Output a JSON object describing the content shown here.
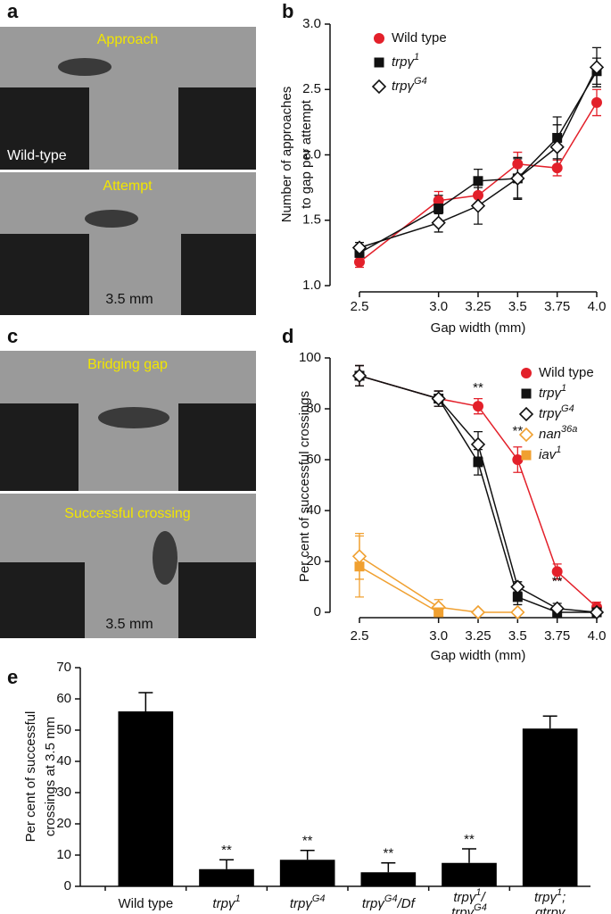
{
  "panel_letters": [
    "a",
    "b",
    "c",
    "d",
    "e"
  ],
  "photos": [
    {
      "label": "Approach",
      "corner_label": "Wild-type"
    },
    {
      "label": "Attempt",
      "corner_label": "3.5 mm"
    },
    {
      "label": "Bridging gap"
    },
    {
      "label": "Successful crossing",
      "corner_label": "3.5 mm"
    }
  ],
  "chart_data": [
    {
      "type": "line",
      "x_label": "Gap width (mm)",
      "y_label": [
        "Number of approaches",
        "to gap per attempt"
      ],
      "x": [
        2.5,
        3.0,
        3.25,
        3.5,
        3.75,
        4.0
      ],
      "xlim": [
        2.5,
        4.0
      ],
      "xticks": [
        2.5,
        {
          "value": 3,
          "label": "3.0"
        },
        3.25,
        3.5,
        3.75,
        {
          "value": 4,
          "label": "4.0"
        }
      ],
      "ylim": [
        1.0,
        3.0
      ],
      "yticks": [
        {
          "value": 1,
          "label": "1.0"
        },
        1.5,
        {
          "value": 2,
          "label": "2.0"
        },
        2.5,
        {
          "value": 3,
          "label": "3.0"
        }
      ],
      "legend": "upper left",
      "series": [
        {
          "name": [
            "Wild type"
          ],
          "color": "#e3202a",
          "marker": "circle",
          "values": [
            1.18,
            1.65,
            1.69,
            1.93,
            1.9,
            2.4
          ],
          "errors": [
            0.04,
            0.07,
            0.08,
            0.09,
            0.06,
            0.1
          ]
        },
        {
          "name": [
            "trpγ",
            "1"
          ],
          "color": "#111111",
          "marker": "square",
          "values": [
            1.25,
            1.59,
            1.8,
            1.82,
            2.13,
            2.64
          ],
          "errors": [
            0.03,
            0.1,
            0.09,
            0.15,
            0.16,
            0.1
          ]
        },
        {
          "name": [
            "trpγ",
            "G4"
          ],
          "color": "#111111",
          "marker": "diamond-open",
          "values": [
            1.29,
            1.48,
            1.61,
            1.82,
            2.06,
            2.67
          ],
          "errors": [
            0.04,
            0.07,
            0.14,
            0.16,
            0.17,
            0.15
          ]
        }
      ]
    },
    {
      "type": "line",
      "x_label": "Gap width (mm)",
      "y_label": [
        "Per cent of successful crossings"
      ],
      "x": [
        2.5,
        3.0,
        3.25,
        3.5,
        3.75,
        4.0
      ],
      "xlim": [
        2.5,
        4.0
      ],
      "xticks": [
        2.5,
        {
          "value": 3,
          "label": "3.0"
        },
        3.25,
        3.5,
        3.75,
        {
          "value": 4,
          "label": "4.0"
        }
      ],
      "ylim": [
        0,
        100
      ],
      "yticks": [
        0,
        20,
        40,
        60,
        80,
        100
      ],
      "legend": "upper right",
      "series": [
        {
          "name": [
            "Wild type"
          ],
          "color": "#e3202a",
          "marker": "circle",
          "values": [
            93,
            84,
            81,
            60,
            16,
            2
          ],
          "errors": [
            4,
            3,
            3,
            5,
            3,
            2
          ]
        },
        {
          "name": [
            "trpγ",
            "1"
          ],
          "color": "#111111",
          "marker": "square",
          "values": [
            93,
            84,
            59,
            6,
            0,
            0
          ],
          "errors": [
            4,
            3,
            5,
            3,
            1,
            0
          ]
        },
        {
          "name": [
            "trpγ",
            "G4"
          ],
          "color": "#111111",
          "marker": "diamond-open",
          "values": [
            93,
            84,
            66,
            10,
            1.5,
            0
          ],
          "errors": [
            4,
            3,
            5,
            2,
            2,
            0
          ]
        },
        {
          "name": [
            "nan",
            "36a"
          ],
          "color": "#f0a030",
          "marker": "diamond-open",
          "values": [
            22,
            2,
            0,
            0,
            null,
            null
          ],
          "errors": [
            9,
            3,
            0,
            0,
            null,
            null
          ]
        },
        {
          "name": [
            "iav",
            "1"
          ],
          "color": "#f0a030",
          "marker": "square",
          "values": [
            18,
            0,
            null,
            null,
            null,
            null
          ],
          "errors": [
            12,
            1,
            null,
            null,
            null,
            null
          ]
        }
      ],
      "annotations": [
        {
          "text": "**",
          "x": 3.25,
          "y": 88
        },
        {
          "text": "**",
          "x": 3.5,
          "y": 71
        },
        {
          "text": "**",
          "x": 3.75,
          "y": 12
        }
      ]
    },
    {
      "type": "bar",
      "y_label": [
        "Per cent of successful",
        "crossings at 3.5 mm"
      ],
      "categories": [
        [
          [
            "Wild type"
          ]
        ],
        [
          [
            "trpγ",
            "1"
          ]
        ],
        [
          [
            "trpγ",
            "G4"
          ]
        ],
        [
          [
            "trpγ",
            "G4",
            "/Df"
          ]
        ],
        [
          [
            "trpγ",
            "1",
            "/"
          ],
          [
            "trpγ",
            "G4"
          ]
        ],
        [
          [
            "trpγ",
            "1",
            ";"
          ],
          [
            "gtrpγ"
          ]
        ]
      ],
      "values": [
        56,
        5.5,
        8.5,
        4.5,
        7.5,
        50.5
      ],
      "errors": [
        6,
        3,
        3,
        3,
        4.5,
        4
      ],
      "color": "#000000",
      "ylim": [
        0,
        70
      ],
      "yticks": [
        0,
        10,
        20,
        30,
        40,
        50,
        60,
        70
      ],
      "annotations": [
        {
          "text": "**",
          "index": 1
        },
        {
          "text": "**",
          "index": 2
        },
        {
          "text": "**",
          "index": 3
        },
        {
          "text": "**",
          "index": 4
        }
      ]
    }
  ]
}
